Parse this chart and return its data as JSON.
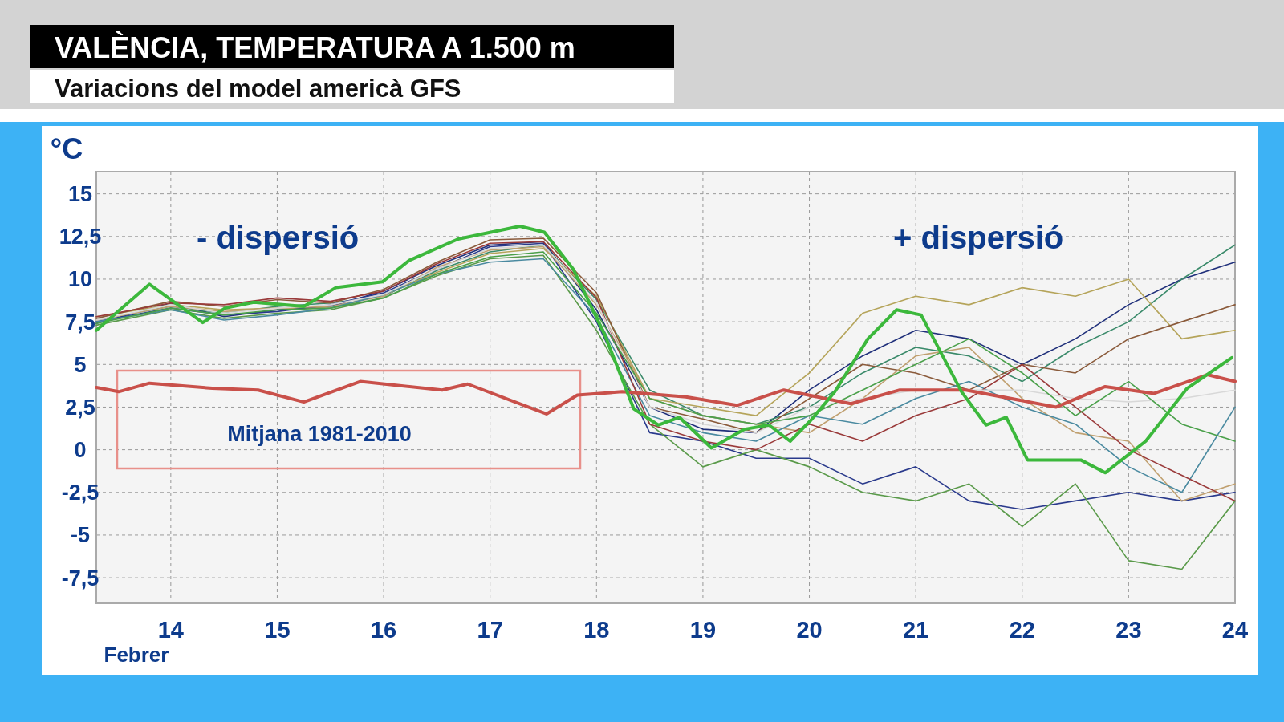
{
  "chart_data": {
    "type": "line",
    "title": "VALÈNCIA, TEMPERATURA A 1.500 m",
    "subtitle": "Variacions del model americà GFS",
    "xlabel": "Febrer",
    "ylabel": "°C",
    "annotations": [
      "- dispersió",
      "+ dispersió",
      "Mitjana 1981-2010"
    ],
    "xlim": [
      13.3,
      24
    ],
    "ylim": [
      -9,
      16.3
    ],
    "xticks": [
      14,
      15,
      16,
      17,
      18,
      19,
      20,
      21,
      22,
      23,
      24
    ],
    "yticks": [
      {
        "value": -7.5,
        "label": "-7,5"
      },
      -5,
      {
        "value": -2.5,
        "label": "-2,5"
      },
      0,
      {
        "value": 2.5,
        "label": "2,5"
      },
      5,
      {
        "value": 7.5,
        "label": "7,5"
      },
      10,
      {
        "value": 12.5,
        "label": "12,5"
      },
      15
    ],
    "grid": true,
    "line_style": "solid",
    "x": [
      13.3,
      14,
      14.5,
      15,
      15.5,
      16,
      16.5,
      17,
      17.5,
      18,
      18.5,
      19,
      19.5,
      20,
      20.5,
      21,
      21.5,
      22,
      22.5,
      23,
      23.5,
      24
    ],
    "series": [
      {
        "color": "#1f2f7a",
        "values": [
          7.4,
          8.6,
          7.8,
          8.2,
          8.4,
          9.3,
          10.8,
          12.0,
          12.2,
          8.2,
          2.5,
          1.2,
          1.0,
          3.5,
          5.5,
          7.0,
          6.5,
          5.0,
          6.5,
          8.5,
          10.0,
          11.0
        ]
      },
      {
        "color": "#3a8a6a",
        "values": [
          7.6,
          8.4,
          8.0,
          8.4,
          8.6,
          9.0,
          10.5,
          11.6,
          12.0,
          8.8,
          3.5,
          2.0,
          1.5,
          2.5,
          4.5,
          6.0,
          5.5,
          4.0,
          6.0,
          7.5,
          10.0,
          12.0
        ]
      },
      {
        "color": "#b5a45a",
        "values": [
          7.8,
          8.5,
          8.2,
          8.3,
          8.3,
          9.1,
          10.4,
          11.5,
          11.8,
          9.0,
          3.0,
          2.5,
          2.0,
          4.5,
          8.0,
          9.0,
          8.5,
          9.5,
          9.0,
          10.0,
          6.5,
          7.0
        ]
      },
      {
        "color": "#2a3a8c",
        "values": [
          7.5,
          8.3,
          7.9,
          8.1,
          8.5,
          9.2,
          10.6,
          11.9,
          12.1,
          7.5,
          1.0,
          0.5,
          -0.5,
          -0.5,
          -2.0,
          -1.0,
          -3.0,
          -3.5,
          -3.0,
          -2.5,
          -3.0,
          -2.5
        ]
      },
      {
        "color": "#5a9a4a",
        "values": [
          7.3,
          8.2,
          7.7,
          8.0,
          8.2,
          8.9,
          10.2,
          11.2,
          11.4,
          7.0,
          1.5,
          -1.0,
          0.0,
          -1.0,
          -2.5,
          -3.0,
          -2.0,
          -4.5,
          -2.0,
          -6.5,
          -7.0,
          -3.0
        ]
      },
      {
        "color": "#8a5a3a",
        "values": [
          7.7,
          8.7,
          8.4,
          8.8,
          8.6,
          9.4,
          11.0,
          12.3,
          12.4,
          9.2,
          2.5,
          1.8,
          1.0,
          3.0,
          5.0,
          4.5,
          3.5,
          5.0,
          4.5,
          6.5,
          7.5,
          8.5
        ]
      },
      {
        "color": "#c0a070",
        "values": [
          7.6,
          8.4,
          8.1,
          8.3,
          8.4,
          9.0,
          10.7,
          11.7,
          11.9,
          8.5,
          3.0,
          2.0,
          1.5,
          1.0,
          3.0,
          5.5,
          6.0,
          3.0,
          1.0,
          0.5,
          -3.0,
          -2.0
        ]
      },
      {
        "color": "#4a8aa0",
        "values": [
          7.5,
          8.2,
          7.6,
          7.9,
          8.3,
          9.1,
          10.3,
          11.0,
          11.2,
          7.8,
          2.0,
          1.0,
          0.5,
          2.0,
          1.5,
          3.0,
          4.0,
          2.5,
          1.5,
          -1.0,
          -2.5,
          2.5
        ]
      },
      {
        "color": "#9a3a3a",
        "values": [
          7.8,
          8.6,
          8.5,
          8.9,
          8.7,
          9.3,
          10.9,
          12.1,
          12.2,
          8.9,
          1.5,
          0.5,
          0.0,
          1.5,
          0.5,
          2.0,
          3.0,
          5.0,
          2.5,
          0.0,
          -1.5,
          -3.0
        ]
      },
      {
        "color": "#d8d8d8",
        "values": [
          7.6,
          8.5,
          8.0,
          8.3,
          8.5,
          9.1,
          10.6,
          11.8,
          12.0,
          8.6,
          2.5,
          1.5,
          1.0,
          2.5,
          3.0,
          3.5,
          3.5,
          3.5,
          3.0,
          2.8,
          3.0,
          3.5
        ]
      },
      {
        "color": "#4aa04a",
        "values": [
          7.4,
          8.3,
          7.9,
          8.2,
          8.3,
          8.9,
          10.3,
          11.3,
          11.6,
          8.0,
          3.0,
          2.0,
          1.5,
          2.0,
          3.5,
          5.0,
          6.5,
          4.5,
          2.0,
          4.0,
          1.5,
          0.5
        ]
      },
      {
        "color": "#c9504a",
        "x": [
          13.3,
          13.51,
          13.8,
          14.39,
          14.82,
          15.25,
          15.78,
          16.55,
          16.79,
          17.53,
          17.82,
          18.24,
          18.84,
          19.32,
          19.76,
          20.39,
          20.85,
          21.47,
          22.32,
          22.78,
          23.24,
          23.74,
          24
        ],
        "values": [
          3.65,
          3.4,
          3.9,
          3.6,
          3.5,
          2.8,
          4.0,
          3.5,
          3.85,
          2.1,
          3.2,
          3.4,
          3.1,
          2.6,
          3.5,
          2.7,
          3.5,
          3.5,
          2.5,
          3.7,
          3.3,
          4.4,
          4.0
        ]
      },
      {
        "color": "#3cb83c",
        "x": [
          13.3,
          13.8,
          14.3,
          14.51,
          14.78,
          15.25,
          15.55,
          15.99,
          16.24,
          16.7,
          17.28,
          17.51,
          17.78,
          18.08,
          18.35,
          18.58,
          18.78,
          19.08,
          19.39,
          19.62,
          19.82,
          20.01,
          20.24,
          20.55,
          20.82,
          21.05,
          21.43,
          21.66,
          21.85,
          22.05,
          22.55,
          22.78,
          23.16,
          23.55,
          23.97
        ],
        "values": [
          7.0,
          9.7,
          7.45,
          8.3,
          8.65,
          8.4,
          9.5,
          9.85,
          11.1,
          12.35,
          13.1,
          12.75,
          10.6,
          6.7,
          2.4,
          1.45,
          1.9,
          0.1,
          1.2,
          1.45,
          0.5,
          1.7,
          3.4,
          6.5,
          8.2,
          7.9,
          3.4,
          1.45,
          1.9,
          -0.6,
          -0.6,
          -1.35,
          0.5,
          3.6,
          5.4
        ]
      }
    ]
  }
}
